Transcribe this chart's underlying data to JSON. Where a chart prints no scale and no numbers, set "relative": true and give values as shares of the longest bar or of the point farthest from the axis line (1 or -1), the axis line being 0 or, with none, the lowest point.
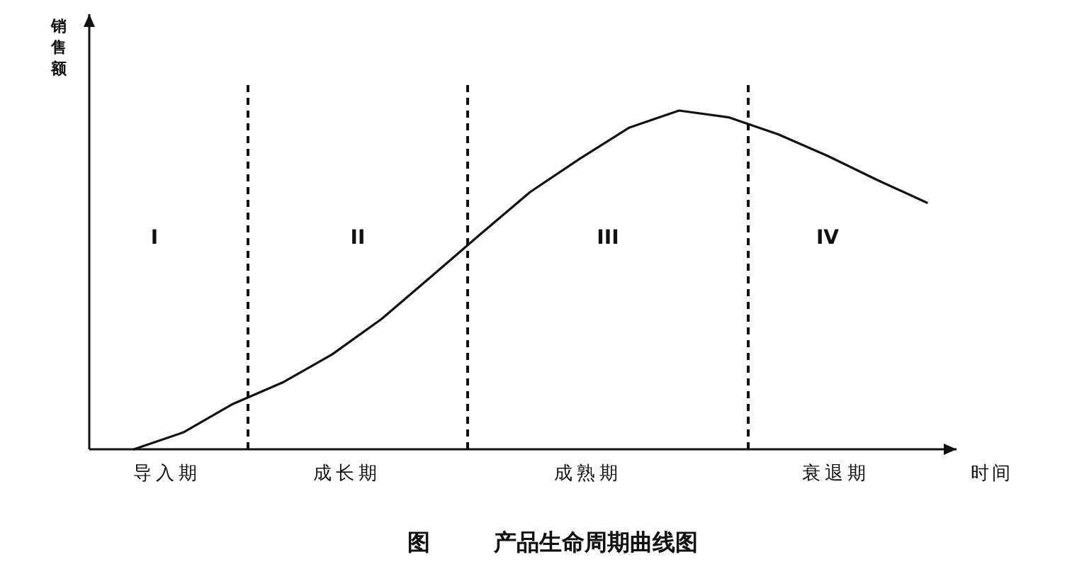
{
  "chart_data": {
    "type": "line",
    "title": "图        产品生命周期曲线图",
    "xlabel": "时间",
    "ylabel": "销售额",
    "relative": true,
    "color": "#111111",
    "categories": [
      null,
      null,
      null,
      null,
      null,
      null,
      null,
      null,
      null,
      null,
      null,
      null,
      null,
      null,
      null,
      null,
      null
    ],
    "values": [
      0,
      0.05,
      0.134,
      0.197,
      0.28,
      0.385,
      0.51,
      0.636,
      0.76,
      0.858,
      0.95,
      1.0,
      0.98,
      0.93,
      0.866,
      0.795,
      0.728
    ],
    "annotations": [
      "I",
      "II",
      "III",
      "IV",
      "导入期",
      "成长期",
      "成熟期",
      "衰退期"
    ]
  }
}
